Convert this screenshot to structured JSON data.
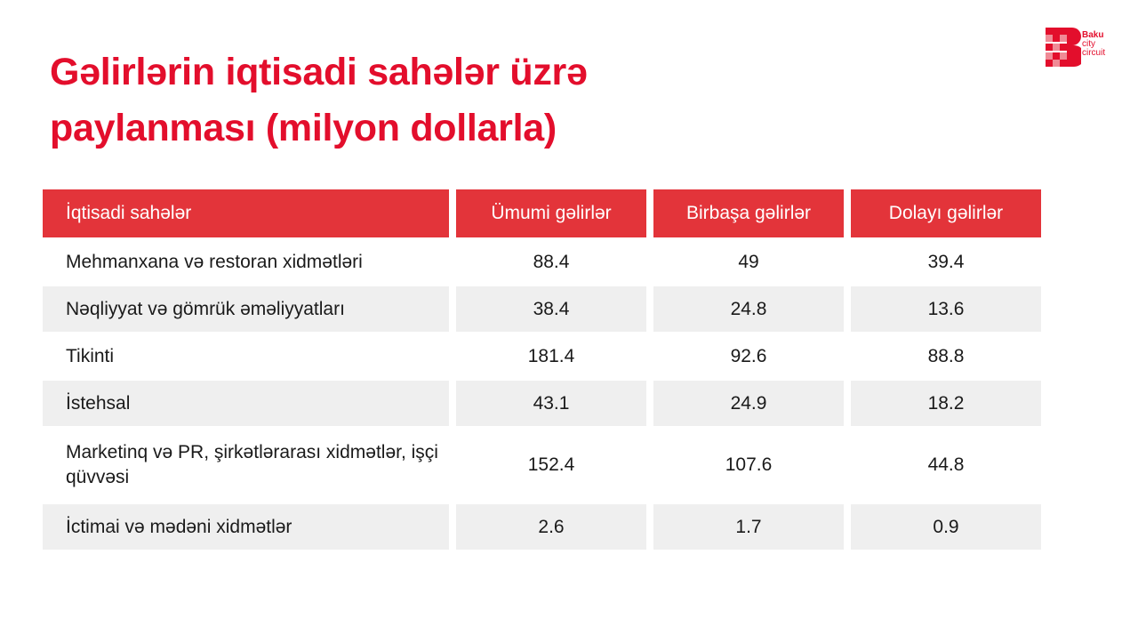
{
  "title": "Gəlirlərin iqtisadi sahələr üzrə paylanması (milyon dollarla)",
  "logo": {
    "line1": "Baku",
    "line2": "city",
    "line3": "circuit",
    "brand_color": "#e30e2c"
  },
  "table": {
    "header_color": "#e3343a",
    "stripe_color": "#efefef",
    "columns": [
      "İqtisadi sahələr",
      "Ümumi gəlirlər",
      "Birbaşa gəlirlər",
      "Dolayı gəlirlər"
    ],
    "rows": [
      [
        "Mehmanxana və restoran xidmətləri",
        "88.4",
        "49",
        "39.4"
      ],
      [
        "Nəqliyyat və gömrük əməliyyatları",
        "38.4",
        "24.8",
        "13.6"
      ],
      [
        "Tikinti",
        "181.4",
        "92.6",
        "88.8"
      ],
      [
        "İstehsal",
        "43.1",
        "24.9",
        "18.2"
      ],
      [
        "Marketinq və PR, şirkətlərarası xidmətlər, işçi qüvvəsi",
        "152.4",
        "107.6",
        "44.8"
      ],
      [
        "İctimai və mədəni xidmətlər",
        "2.6",
        "1.7",
        "0.9"
      ]
    ]
  }
}
